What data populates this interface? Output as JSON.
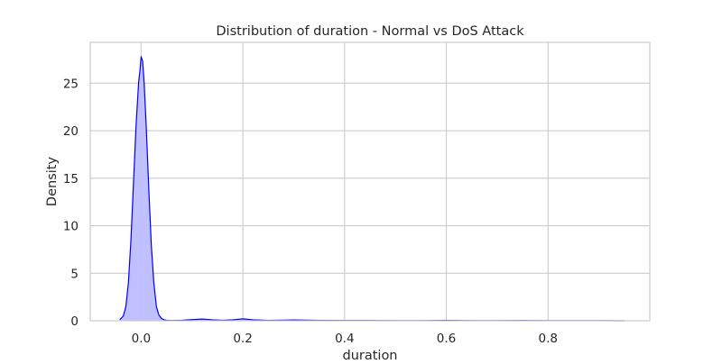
{
  "chart_data": {
    "type": "area",
    "title": "Distribution of duration - Normal vs DoS Attack",
    "xlabel": "duration",
    "ylabel": "Density",
    "xlim": [
      -0.1,
      1.0
    ],
    "ylim": [
      0,
      29.3
    ],
    "xticks": [
      0.0,
      0.2,
      0.4,
      0.6,
      0.8
    ],
    "xtick_labels": [
      "0.0",
      "0.2",
      "0.4",
      "0.6",
      "0.8"
    ],
    "yticks": [
      0,
      5,
      10,
      15,
      20,
      25
    ],
    "ytick_labels": [
      "0",
      "5",
      "10",
      "15",
      "20",
      "25"
    ],
    "grid": true,
    "legend": "none",
    "series": [
      {
        "line_color": "#0000ff",
        "fill_color": "#bdbdff",
        "x": [
          -0.042,
          -0.035,
          -0.03,
          -0.025,
          -0.02,
          -0.015,
          -0.01,
          -0.005,
          -0.002,
          0.0,
          0.003,
          0.006,
          0.01,
          0.015,
          0.02,
          0.025,
          0.03,
          0.035,
          0.04,
          0.045,
          0.05,
          0.06,
          0.08,
          0.1,
          0.12,
          0.14,
          0.16,
          0.18,
          0.2,
          0.22,
          0.25,
          0.28,
          0.3,
          0.35,
          0.4,
          0.45,
          0.5,
          0.55,
          0.6,
          0.65,
          0.7,
          0.75,
          0.8,
          0.85,
          0.9,
          0.95
        ],
        "y": [
          0.1,
          0.5,
          1.5,
          4.0,
          8.5,
          14.5,
          20.5,
          25.0,
          26.5,
          27.8,
          27.3,
          25.0,
          20.5,
          14.0,
          8.0,
          4.0,
          1.5,
          0.6,
          0.25,
          0.1,
          0.05,
          0.03,
          0.05,
          0.12,
          0.18,
          0.1,
          0.05,
          0.1,
          0.2,
          0.1,
          0.04,
          0.06,
          0.08,
          0.04,
          0.03,
          0.03,
          0.02,
          0.02,
          0.04,
          0.02,
          0.02,
          0.03,
          0.02,
          0.01,
          0.01,
          0.0
        ]
      }
    ]
  }
}
